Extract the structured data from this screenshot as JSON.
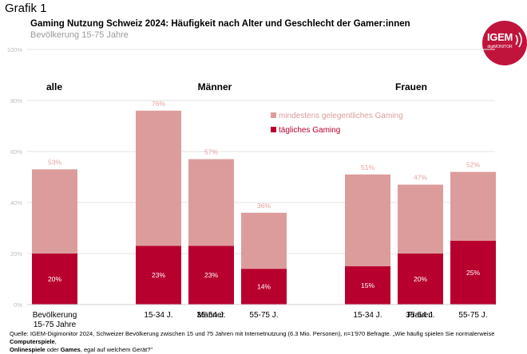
{
  "figure_label": "Grafik 1",
  "logo": {
    "main": "IGEM",
    "sub": "digiMONITOR"
  },
  "source": {
    "part1": "Quelle: IGEM-Digimonitor 2024, Schweizer Bevölkerung zwischen 15 und 75 Jahren mit Internetnutzung (6.3 Mio. Personen), n=1'970 Befragte. „Wie häufig spielen Sie normalerweise ",
    "bold1": "Computerspiele",
    "sep1": ",",
    "bold2": "Onlinespiele",
    "sep2": " oder ",
    "bold3": "Games",
    "part2": ", egal auf welchem Gerät?\""
  },
  "colors": {
    "light": "#dd9c9c",
    "dark": "#b8002f",
    "light_label": "#e8a0a0",
    "grid": "#e3e3e3",
    "axis_text": "#bdbdbd"
  },
  "chart_data": {
    "type": "bar",
    "stacked": true,
    "title": "Gaming Nutzung Schweiz 2024: Häufigkeit nach Alter und Geschlecht der Gamer:innen",
    "subtitle": "Bevölkerung 15-75 Jahre",
    "ylim": [
      0,
      100
    ],
    "yticks": [
      0,
      20,
      40,
      60,
      80,
      100
    ],
    "ytick_labels": [
      "0%",
      "20%",
      "40%",
      "60%",
      "80%",
      "100%"
    ],
    "groups": [
      {
        "header": "alle",
        "label": ""
      },
      {
        "header": "Männer",
        "label": "Männer"
      },
      {
        "header": "Frauen",
        "label": "Frauen"
      }
    ],
    "categories": [
      {
        "label": "Bevölkerung\n15-75 Jahre",
        "group": 0
      },
      {
        "label": "15-34 J.",
        "group": 1
      },
      {
        "label": "35-54 J.",
        "group": 1
      },
      {
        "label": "55-75 J.",
        "group": 1
      },
      {
        "label": "15-34 J.",
        "group": 2
      },
      {
        "label": "35-54 J.",
        "group": 2
      },
      {
        "label": "55-75 J.",
        "group": 2
      }
    ],
    "series": [
      {
        "name": "tägliches Gaming",
        "values": [
          20,
          23,
          23,
          14,
          15,
          20,
          25
        ],
        "labels": [
          "20%",
          "23%",
          "23%",
          "14%",
          "15%",
          "20%",
          "25%"
        ]
      },
      {
        "name": "mindestens gelegentliches Gaming",
        "totals": [
          53,
          76,
          57,
          36,
          51,
          47,
          52
        ],
        "labels": [
          "53%",
          "76%",
          "57%",
          "36%",
          "51%",
          "47%",
          "52%"
        ]
      }
    ],
    "legend": [
      "mindestens gelegentliches Gaming",
      "tägliches Gaming"
    ]
  }
}
